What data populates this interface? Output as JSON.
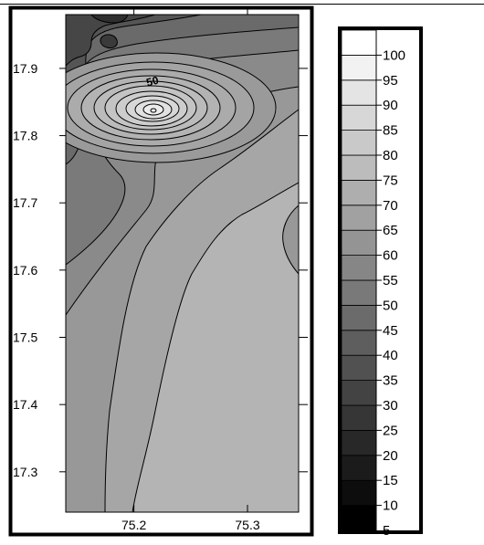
{
  "chart_data": [
    {
      "type": "heatmap",
      "title": "",
      "xlabel": "",
      "ylabel": "",
      "x_ticks": [
        75.2,
        75.3
      ],
      "x_tick_labels": [
        "75.2",
        "75.3"
      ],
      "y_ticks": [
        17.3,
        17.4,
        17.5,
        17.6,
        17.7,
        17.8,
        17.9
      ],
      "y_tick_labels": [
        "17.3",
        "17.4",
        "17.5",
        "17.6",
        "17.7",
        "17.8",
        "17.9"
      ],
      "xlim": [
        75.14,
        75.345
      ],
      "ylim": [
        17.24,
        17.98
      ],
      "contour_levels": [
        5,
        10,
        15,
        20,
        25,
        30,
        35,
        40,
        45,
        50,
        55,
        60,
        65,
        70,
        75,
        80,
        85,
        90,
        95,
        100
      ],
      "contour_label": "50",
      "peak": {
        "x": 75.21,
        "y": 17.84,
        "value": 100
      },
      "grid": false
    },
    {
      "type": "colorbar",
      "levels": [
        5,
        10,
        15,
        20,
        25,
        30,
        35,
        40,
        45,
        50,
        55,
        60,
        65,
        70,
        75,
        80,
        85,
        90,
        95,
        100
      ],
      "labels": [
        "5",
        "10",
        "15",
        "20",
        "25",
        "30",
        "35",
        "40",
        "45",
        "50",
        "55",
        "60",
        "65",
        "70",
        "75",
        "80",
        "85",
        "90",
        "95",
        "100"
      ],
      "range": [
        5,
        105
      ],
      "colors": {
        "low": "#000000",
        "high": "#ffffff"
      }
    }
  ]
}
